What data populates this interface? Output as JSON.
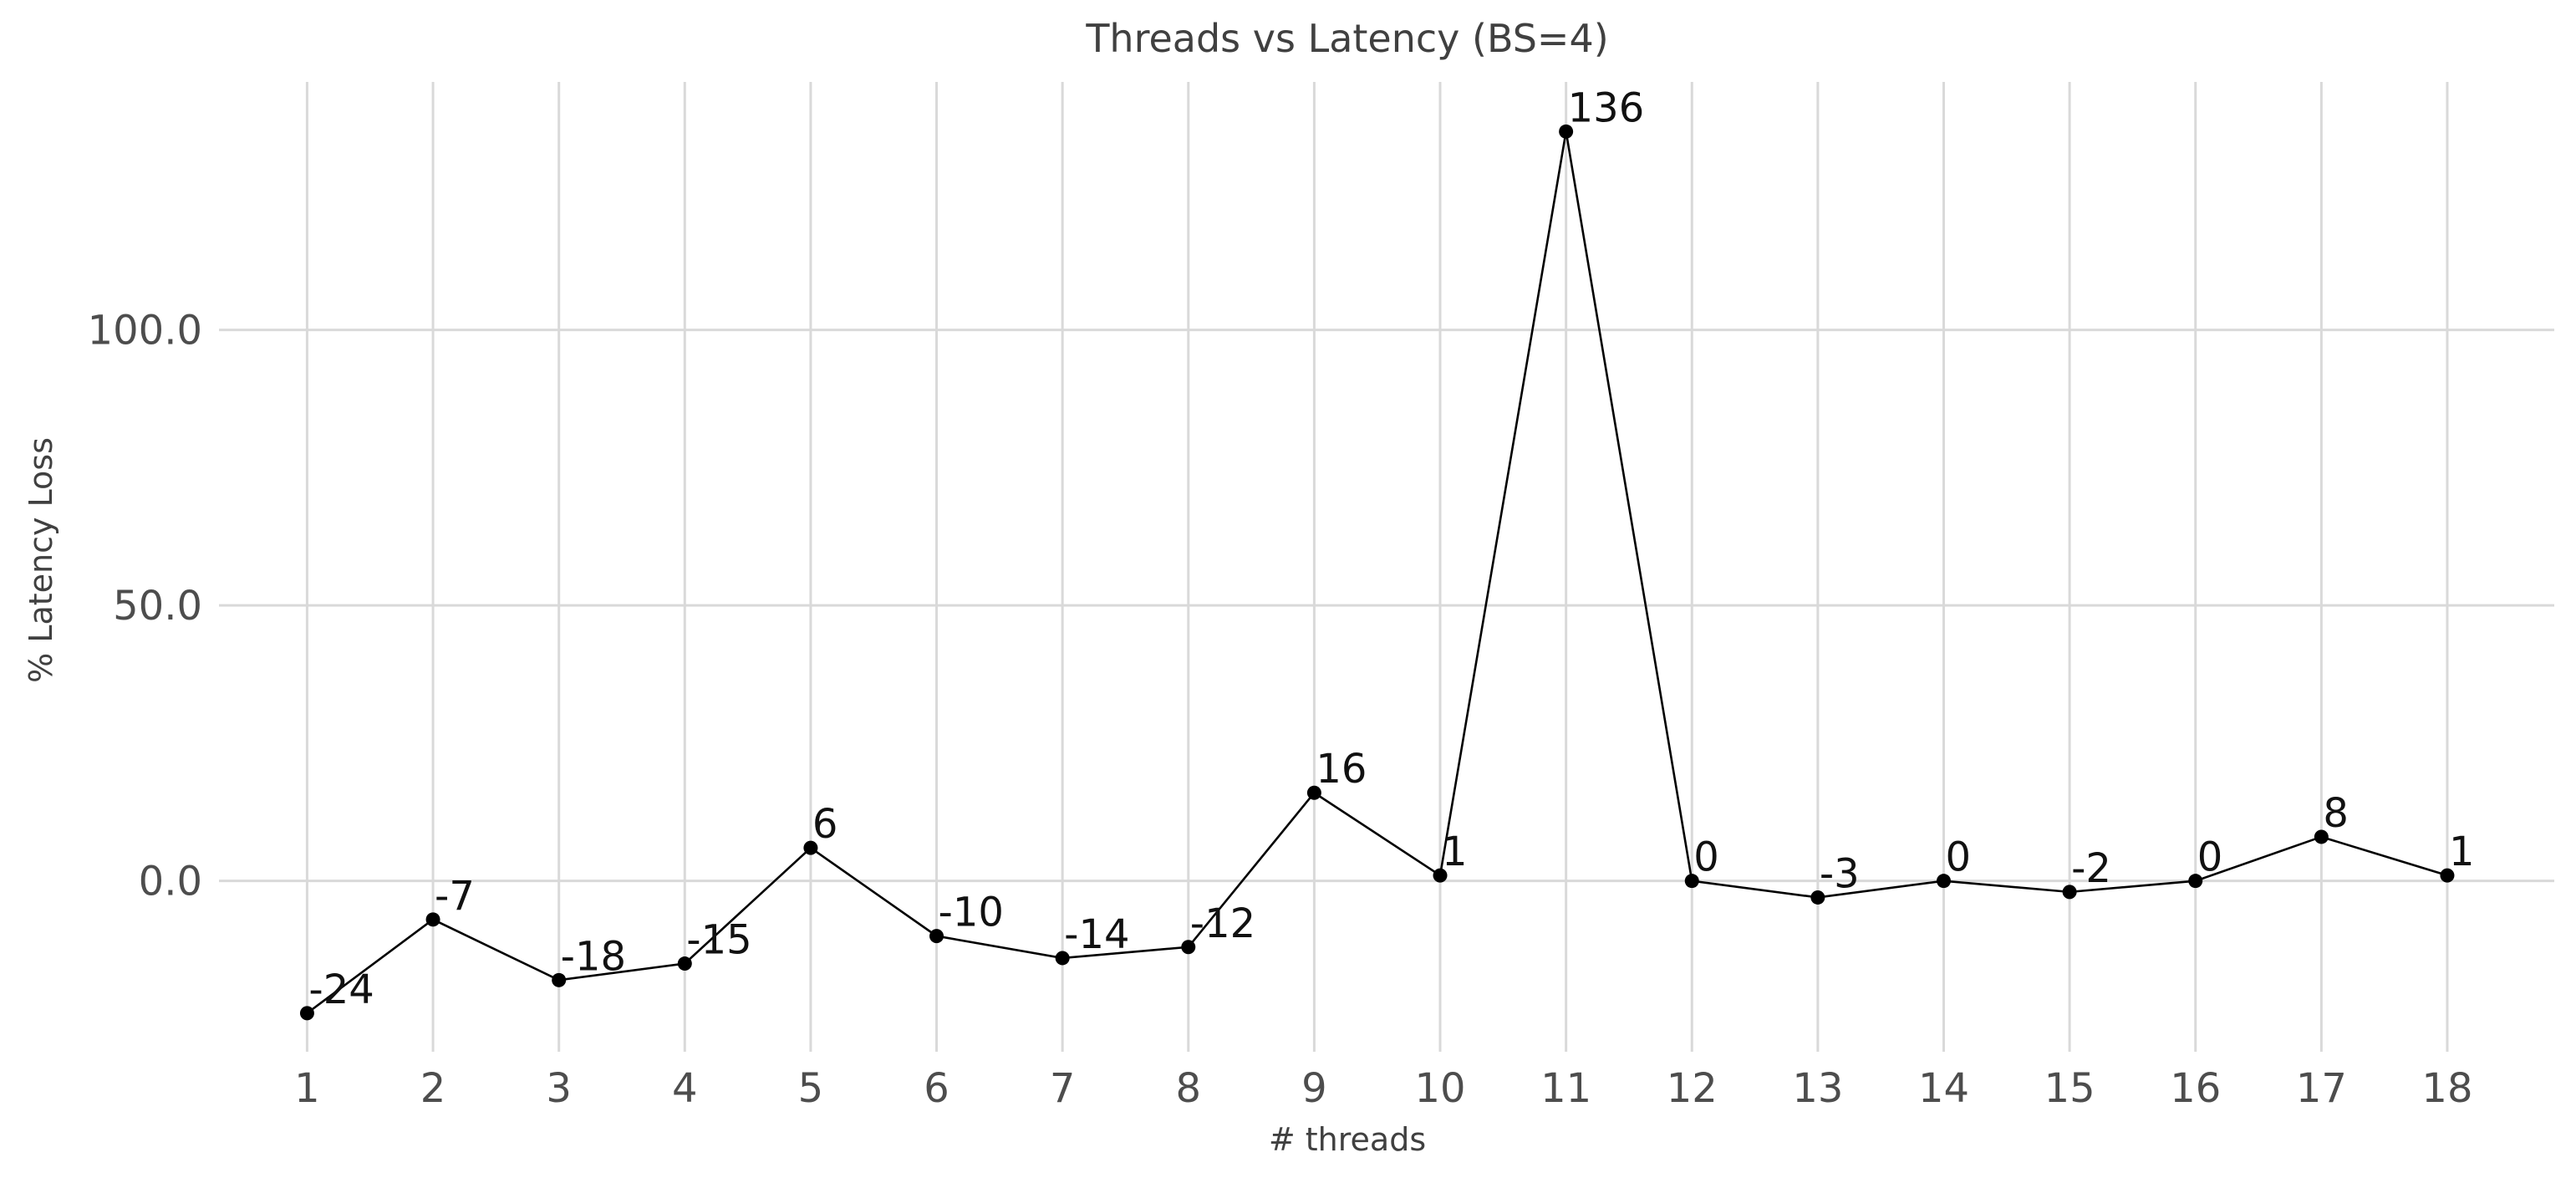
{
  "chart_data": {
    "type": "line",
    "title": "Threads vs Latency (BS=4)",
    "xlabel": "# threads",
    "ylabel": "% Latency Loss",
    "x": [
      1,
      2,
      3,
      4,
      5,
      6,
      7,
      8,
      9,
      10,
      11,
      12,
      13,
      14,
      15,
      16,
      17,
      18
    ],
    "x_tick_labels": [
      "1",
      "2",
      "3",
      "4",
      "5",
      "6",
      "7",
      "8",
      "9",
      "10",
      "11",
      "12",
      "13",
      "14",
      "15",
      "16",
      "17",
      "18"
    ],
    "series": [
      {
        "values": [
          -24,
          -7,
          -18,
          -15,
          6,
          -10,
          -14,
          -12,
          16,
          1,
          136,
          0,
          -3,
          0,
          -2,
          0,
          8,
          1
        ],
        "data_labels": [
          "-24",
          "-7",
          "-18",
          "-15",
          "6",
          "-10",
          "-14",
          "-12",
          "16",
          "1",
          "136",
          "0",
          "-3",
          "0",
          "-2",
          "0",
          "8",
          "1"
        ],
        "color": "#000000"
      }
    ],
    "y_ticks": [
      0,
      50,
      100
    ],
    "y_tick_labels": [
      "0.0",
      "50.0",
      "100.0"
    ],
    "xlim": [
      0.3,
      18.85
    ],
    "ylim": [
      -31,
      145
    ],
    "grid": true,
    "legend": "none"
  }
}
